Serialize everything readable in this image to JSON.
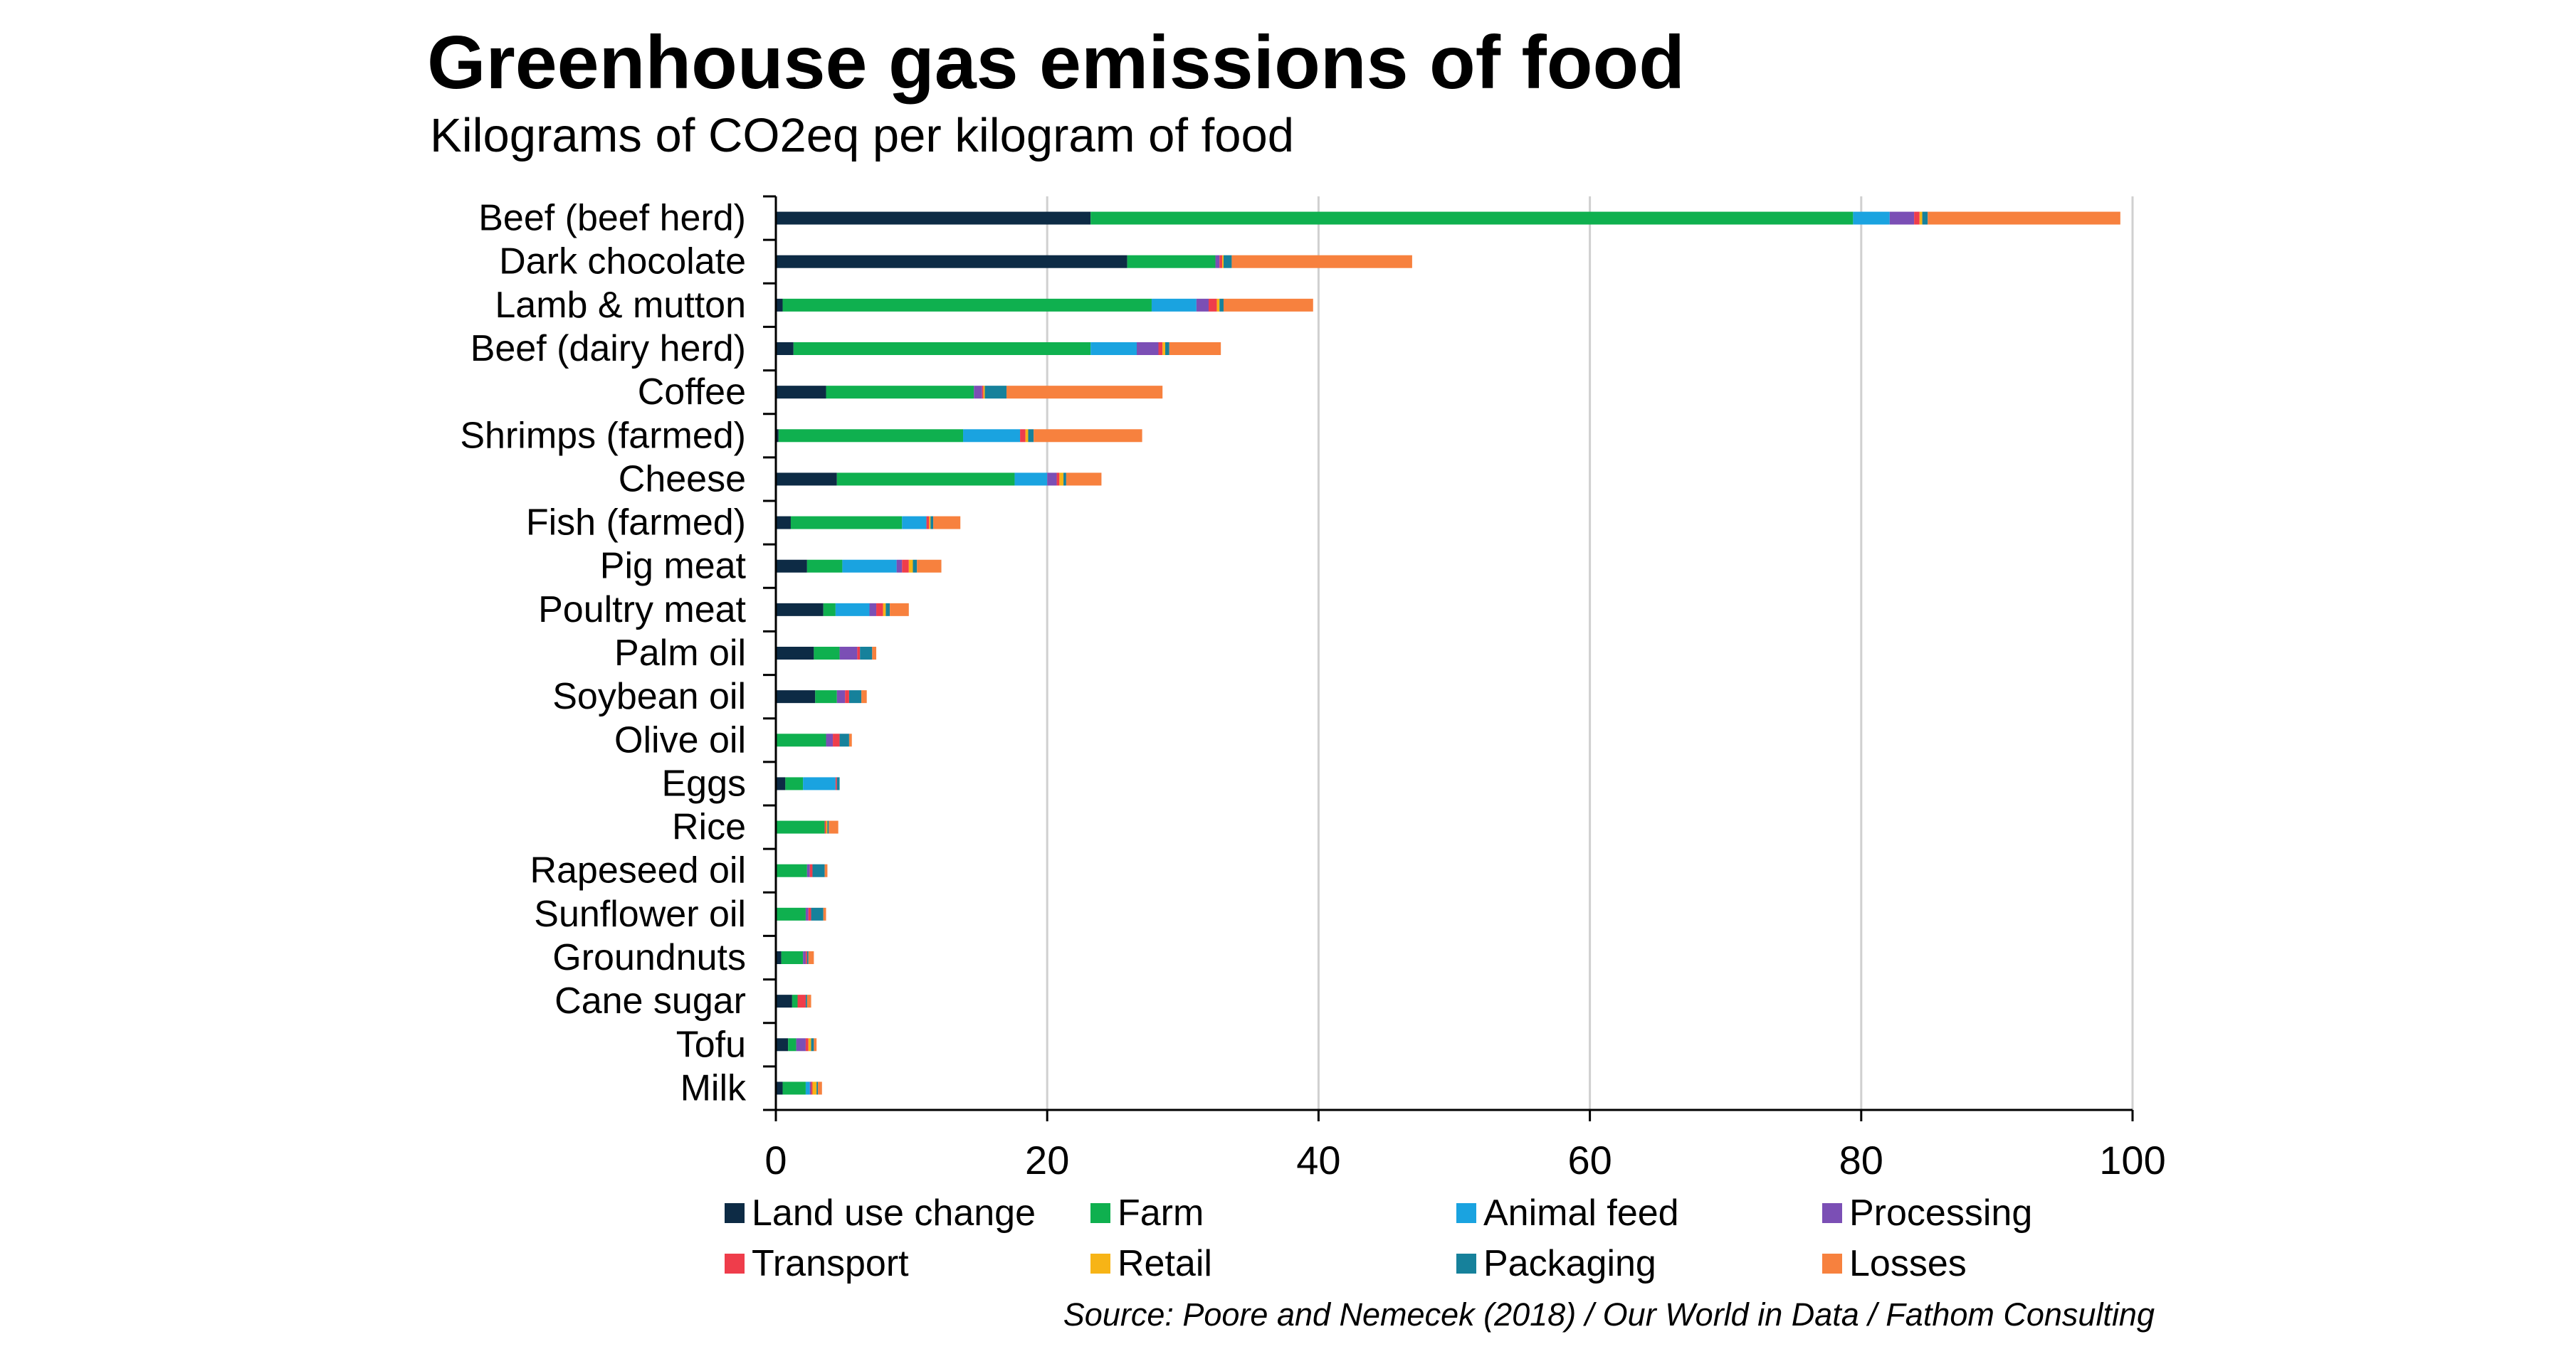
{
  "title": "Greenhouse gas emissions of food",
  "subtitle": "Kilograms of CO2eq per kilogram of food",
  "source": "Source: Poore and Nemecek (2018) / Our World in Data / Fathom Consulting",
  "chart_data": {
    "type": "bar",
    "orientation": "horizontal",
    "stacked": true,
    "xlim": [
      0,
      100
    ],
    "xticks": [
      0,
      20,
      40,
      60,
      80,
      100
    ],
    "grid": true,
    "legend_position": "bottom",
    "categories": [
      "Beef (beef herd)",
      "Dark chocolate",
      "Lamb & mutton",
      "Beef (dairy herd)",
      "Coffee",
      "Shrimps (farmed)",
      "Cheese",
      "Fish (farmed)",
      "Pig meat",
      "Poultry meat",
      "Palm oil",
      "Soybean oil",
      "Olive oil",
      "Eggs",
      "Rice",
      "Rapeseed oil",
      "Sunflower oil",
      "Groundnuts",
      "Cane sugar",
      "Tofu",
      "Milk"
    ],
    "series": [
      {
        "name": "Land use change",
        "color": "#0d2b45",
        "values": [
          23.2,
          25.9,
          0.5,
          1.3,
          3.7,
          0.2,
          4.5,
          1.1,
          2.3,
          3.5,
          2.8,
          2.9,
          0.0,
          0.7,
          0.0,
          0.0,
          0.0,
          0.4,
          1.2,
          0.9,
          0.5
        ]
      },
      {
        "name": "Farm",
        "color": "#0fb04f",
        "values": [
          56.2,
          6.5,
          27.2,
          21.9,
          10.9,
          13.6,
          13.1,
          8.2,
          2.6,
          0.9,
          1.9,
          1.6,
          3.7,
          1.3,
          3.6,
          2.3,
          2.2,
          1.6,
          0.4,
          0.6,
          1.7
        ]
      },
      {
        "name": "Animal feed",
        "color": "#1aa3e0",
        "values": [
          2.7,
          0.0,
          3.3,
          3.4,
          0.0,
          4.2,
          2.4,
          1.8,
          4.0,
          2.5,
          0.0,
          0.0,
          0.0,
          2.4,
          0.0,
          0.0,
          0.0,
          0.0,
          0.0,
          0.0,
          0.3
        ]
      },
      {
        "name": "Processing",
        "color": "#7b4fb5",
        "values": [
          1.8,
          0.3,
          0.9,
          1.6,
          0.6,
          0.0,
          0.7,
          0.0,
          0.4,
          0.5,
          1.3,
          0.6,
          0.5,
          0.0,
          0.0,
          0.2,
          0.2,
          0.2,
          0.0,
          0.7,
          0.1
        ]
      },
      {
        "name": "Transport",
        "color": "#ef3d4b",
        "values": [
          0.4,
          0.2,
          0.6,
          0.3,
          0.1,
          0.4,
          0.2,
          0.2,
          0.5,
          0.5,
          0.2,
          0.3,
          0.5,
          0.1,
          0.1,
          0.2,
          0.2,
          0.1,
          0.6,
          0.2,
          0.1
        ]
      },
      {
        "name": "Retail",
        "color": "#f7b416",
        "values": [
          0.2,
          0.1,
          0.2,
          0.2,
          0.1,
          0.2,
          0.3,
          0.1,
          0.3,
          0.2,
          0.0,
          0.0,
          0.0,
          0.0,
          0.1,
          0.0,
          0.0,
          0.0,
          0.0,
          0.2,
          0.3
        ]
      },
      {
        "name": "Packaging",
        "color": "#16819b",
        "values": [
          0.4,
          0.6,
          0.3,
          0.3,
          1.6,
          0.4,
          0.2,
          0.2,
          0.3,
          0.3,
          0.9,
          0.9,
          0.7,
          0.2,
          0.1,
          0.9,
          0.9,
          0.1,
          0.1,
          0.2,
          0.1
        ]
      },
      {
        "name": "Losses",
        "color": "#f7813e",
        "values": [
          14.2,
          13.3,
          6.6,
          3.8,
          11.5,
          8.0,
          2.6,
          2.0,
          1.8,
          1.4,
          0.3,
          0.4,
          0.2,
          0.0,
          0.7,
          0.2,
          0.2,
          0.4,
          0.3,
          0.2,
          0.3
        ]
      }
    ]
  }
}
